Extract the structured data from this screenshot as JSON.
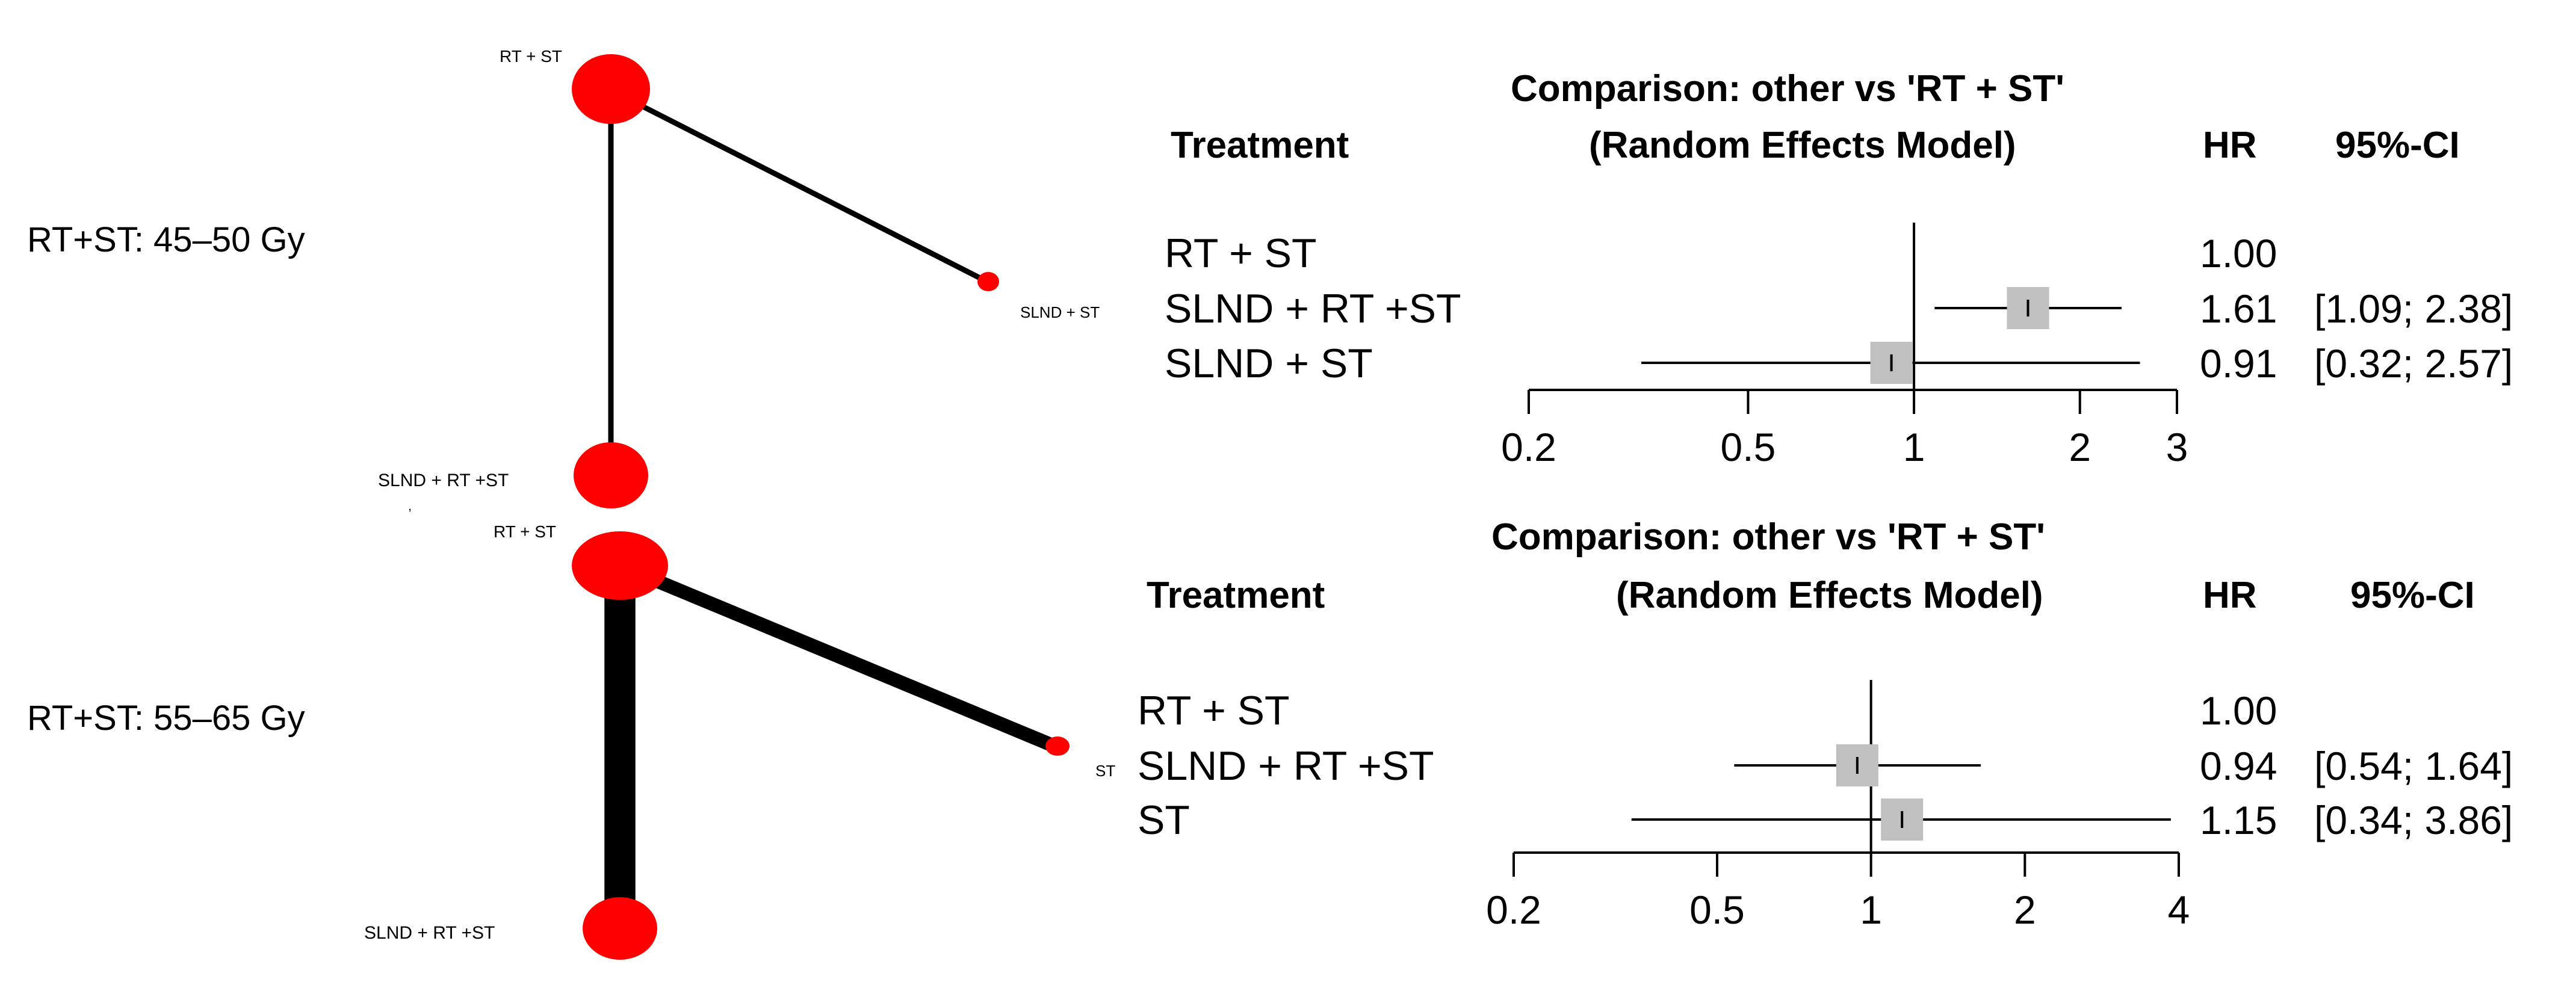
{
  "colors": {
    "node": "#ff0000",
    "edge": "#000000",
    "marker": "#c0c0c0",
    "axis": "#000000",
    "background": "#ffffff"
  },
  "chart_data": [
    {
      "type": "network",
      "panel_label": "RT+ST: 45–50 Gy",
      "nodes": [
        "RT + ST",
        "SLND + ST",
        "SLND + RT +ST"
      ],
      "node_sizes": {
        "RT + ST": "large",
        "SLND + ST": "small",
        "SLND + RT +ST": "large"
      },
      "edges": [
        {
          "from": "RT + ST",
          "to": "SLND + ST",
          "weight": 1
        },
        {
          "from": "RT + ST",
          "to": "SLND + RT +ST",
          "weight": 1
        }
      ]
    },
    {
      "type": "forest",
      "title": "Comparison: other vs 'RT + ST'",
      "subtitle": "(Random Effects Model)",
      "col_treatment": "Treatment",
      "col_hr": "HR",
      "col_ci": "95%-CI",
      "scale": "log",
      "xlim": [
        0.2,
        3
      ],
      "xticks": [
        0.2,
        0.5,
        1,
        2,
        3
      ],
      "xtick_labels": [
        "0.2",
        "0.5",
        "1",
        "2",
        "3"
      ],
      "reference": 1,
      "rows": [
        {
          "treatment": "RT + ST",
          "hr": 1.0,
          "lower": null,
          "upper": null,
          "hr_label": "1.00",
          "ci_label": ""
        },
        {
          "treatment": "SLND + RT +ST",
          "hr": 1.61,
          "lower": 1.09,
          "upper": 2.38,
          "hr_label": "1.61",
          "ci_label": "[1.09; 2.38]"
        },
        {
          "treatment": "SLND + ST",
          "hr": 0.91,
          "lower": 0.32,
          "upper": 2.57,
          "hr_label": "0.91",
          "ci_label": "[0.32; 2.57]"
        }
      ]
    },
    {
      "type": "network",
      "panel_label": "RT+ST: 55–65 Gy",
      "nodes": [
        "RT + ST",
        "ST",
        "SLND + RT +ST"
      ],
      "node_sizes": {
        "RT + ST": "large",
        "ST": "small",
        "SLND + RT +ST": "large"
      },
      "edges": [
        {
          "from": "RT + ST",
          "to": "ST",
          "weight": 4
        },
        {
          "from": "RT + ST",
          "to": "SLND + RT +ST",
          "weight": 9
        }
      ]
    },
    {
      "type": "forest",
      "title": "Comparison: other vs 'RT + ST'",
      "subtitle": "(Random Effects Model)",
      "col_treatment": "Treatment",
      "col_hr": "HR",
      "col_ci": "95%-CI",
      "scale": "log",
      "xlim": [
        0.2,
        4
      ],
      "xticks": [
        0.2,
        0.5,
        1,
        2,
        4
      ],
      "xtick_labels": [
        "0.2",
        "0.5",
        "1",
        "2",
        "4"
      ],
      "reference": 1,
      "rows": [
        {
          "treatment": "RT + ST",
          "hr": 1.0,
          "lower": null,
          "upper": null,
          "hr_label": "1.00",
          "ci_label": ""
        },
        {
          "treatment": "SLND + RT +ST",
          "hr": 0.94,
          "lower": 0.54,
          "upper": 1.64,
          "hr_label": "0.94",
          "ci_label": "[0.54; 1.64]"
        },
        {
          "treatment": "ST",
          "hr": 1.15,
          "lower": 0.34,
          "upper": 3.86,
          "hr_label": "1.15",
          "ci_label": "[0.34; 3.86]"
        }
      ]
    }
  ]
}
